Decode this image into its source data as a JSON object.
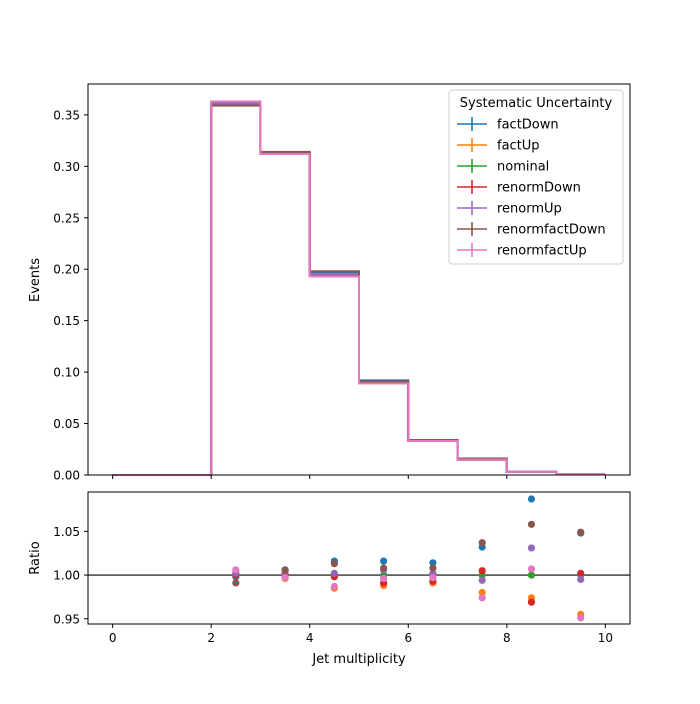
{
  "chart_data": [
    {
      "type": "line",
      "ylabel": "Events",
      "ylim": [
        0,
        0.38
      ],
      "xlim": [
        -0.5,
        10.5
      ],
      "yticks": [
        "0.00",
        "0.05",
        "0.10",
        "0.15",
        "0.20",
        "0.25",
        "0.30",
        "0.35"
      ],
      "legend": {
        "title": "Systematic Uncertainty",
        "placement": "top-right"
      },
      "bin_edges": [
        0,
        1,
        2,
        3,
        4,
        5,
        6,
        7,
        8,
        9,
        10
      ],
      "series": [
        {
          "name": "factDown",
          "color": "#1f77b4",
          "values": [
            0,
            0,
            0.36,
            0.313,
            0.197,
            0.092,
            0.034,
            0.016,
            0.003,
            0.001
          ]
        },
        {
          "name": "factUp",
          "color": "#ff7f0e",
          "values": [
            0,
            0,
            0.362,
            0.312,
            0.193,
            0.089,
            0.033,
            0.015,
            0.003,
            0.001
          ]
        },
        {
          "name": "nominal",
          "color": "#2ca02c",
          "values": [
            0,
            0,
            0.361,
            0.313,
            0.195,
            0.09,
            0.034,
            0.015,
            0.003,
            0.001
          ]
        },
        {
          "name": "renormDown",
          "color": "#d62728",
          "values": [
            0,
            0,
            0.361,
            0.313,
            0.195,
            0.09,
            0.033,
            0.015,
            0.003,
            0.001
          ]
        },
        {
          "name": "renormUp",
          "color": "#9467bd",
          "values": [
            0,
            0,
            0.361,
            0.313,
            0.195,
            0.09,
            0.034,
            0.015,
            0.003,
            0.001
          ]
        },
        {
          "name": "renormfactDown",
          "color": "#8c564b",
          "values": [
            0,
            0,
            0.359,
            0.314,
            0.198,
            0.091,
            0.034,
            0.016,
            0.003,
            0.001
          ]
        },
        {
          "name": "renormfactUp",
          "color": "#e377c2",
          "values": [
            0,
            0,
            0.363,
            0.312,
            0.193,
            0.089,
            0.033,
            0.015,
            0.003,
            0.001
          ]
        }
      ]
    },
    {
      "type": "scatter",
      "xlabel": "Jet multiplicity",
      "ylabel": "Ratio",
      "xlim": [
        -0.5,
        10.5
      ],
      "ylim": [
        0.944,
        1.095
      ],
      "xticks": [
        "0",
        "2",
        "4",
        "6",
        "8",
        "10"
      ],
      "yticks": [
        "0.95",
        "1.00",
        "1.05"
      ],
      "reference_line": 1.0,
      "x": [
        2.5,
        3.5,
        4.5,
        5.5,
        6.5,
        7.5,
        8.5,
        9.5
      ],
      "series": [
        {
          "name": "factDown",
          "color": "#1f77b4",
          "values": [
            0.998,
            1.006,
            1.016,
            1.016,
            1.014,
            1.032,
            1.087,
            1.048
          ]
        },
        {
          "name": "factUp",
          "color": "#ff7f0e",
          "values": [
            1.003,
            0.996,
            0.985,
            0.988,
            0.991,
            0.98,
            0.974,
            0.955
          ]
        },
        {
          "name": "nominal",
          "color": "#2ca02c",
          "values": [
            1.0,
            1.0,
            1.0,
            1.0,
            1.0,
            1.0,
            1.0,
            1.0
          ]
        },
        {
          "name": "renormDown",
          "color": "#d62728",
          "values": [
            1.0,
            1.001,
            0.998,
            0.991,
            0.993,
            1.005,
            0.969,
            1.002
          ]
        },
        {
          "name": "renormUp",
          "color": "#9467bd",
          "values": [
            1.002,
            0.999,
            1.002,
            1.006,
            1.002,
            0.994,
            1.031,
            0.995
          ]
        },
        {
          "name": "renormfactDown",
          "color": "#8c564b",
          "values": [
            0.991,
            1.005,
            1.013,
            1.008,
            1.008,
            1.037,
            1.058,
            1.049
          ]
        },
        {
          "name": "renormfactUp",
          "color": "#e377c2",
          "values": [
            1.006,
            0.997,
            0.987,
            0.996,
            0.997,
            0.974,
            1.007,
            0.951
          ]
        }
      ]
    }
  ]
}
